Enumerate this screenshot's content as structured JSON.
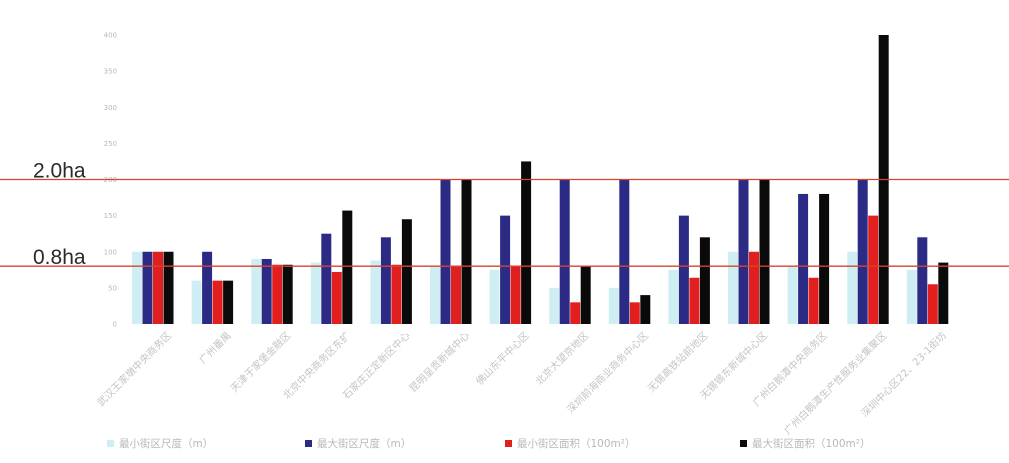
{
  "chart_data": {
    "type": "bar",
    "categories": [
      "武汉王家墩中央商务区",
      "广州番禺",
      "天津于家堡金融区",
      "北京中央商务区东扩",
      "石家庄正定新区中心",
      "昆明呈贡新城中心",
      "佛山东平中心区",
      "北京大望京地区",
      "深圳前海商业商务中心区",
      "无锡高铁站前地区",
      "无锡锡东新城中心区",
      "广州白鹅潭中央商务区",
      "广州白鹅潭生产性服务业集聚区",
      "深圳中心区22、23-1街坊"
    ],
    "series": [
      {
        "name": "最小街区尺度（m）",
        "color": "#cfeef3",
        "values": [
          100,
          60,
          90,
          85,
          88,
          80,
          75,
          50,
          50,
          75,
          100,
          80,
          100,
          75
        ]
      },
      {
        "name": "最大街区尺度（m）",
        "color": "#2b2b86",
        "values": [
          100,
          100,
          90,
          125,
          120,
          200,
          150,
          200,
          200,
          150,
          200,
          180,
          200,
          120
        ]
      },
      {
        "name": "最小街区面积（100m²）",
        "color": "#e21f1f",
        "values": [
          100,
          60,
          82,
          72,
          82,
          80,
          80,
          30,
          30,
          64,
          100,
          64,
          150,
          55
        ]
      },
      {
        "name": "最大街区面积（100m²）",
        "color": "#0a0a0a",
        "values": [
          100,
          60,
          82,
          157,
          145,
          200,
          225,
          80,
          40,
          120,
          200,
          180,
          400,
          85
        ]
      }
    ],
    "ylim": [
      0,
      400
    ],
    "yticks": [
      "0",
      "50",
      "100",
      "150",
      "200",
      "250",
      "300",
      "350",
      "400"
    ],
    "title": "",
    "xlabel": "",
    "ylabel": "",
    "grid": false,
    "legend_position": "bottom",
    "reference_lines": [
      {
        "label": "2.0ha",
        "value": 200,
        "color": "#d9432e"
      },
      {
        "label": "0.8ha",
        "value": 80,
        "color": "#d9432e"
      }
    ]
  }
}
